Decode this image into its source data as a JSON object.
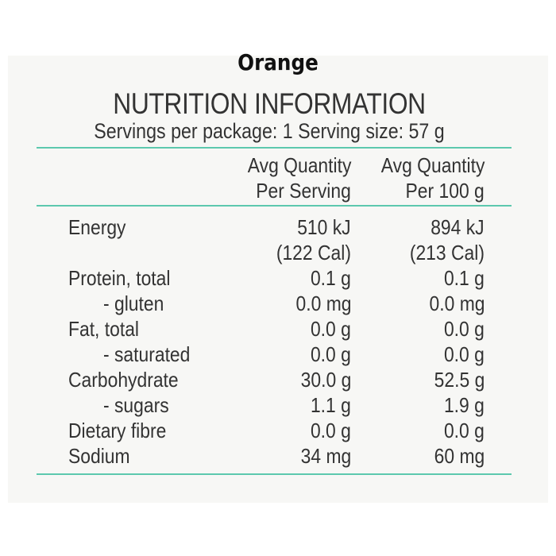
{
  "header": {
    "product": "Orange",
    "heading": "NUTRITION INFORMATION",
    "servings": "Servings per package: 1 Serving size: 57 g"
  },
  "columns": {
    "per_serving_line1": "Avg Quantity",
    "per_serving_line2": "Per Serving",
    "per_100g_line1": "Avg Quantity",
    "per_100g_line2": "Per 100 g"
  },
  "rows": [
    {
      "label": "Energy",
      "serving": "510 kJ",
      "per100": "894 kJ"
    },
    {
      "label": "",
      "serving": "(122 Cal)",
      "per100": "(213 Cal)"
    },
    {
      "label": "Protein, total",
      "serving": "0.1 g",
      "per100": "0.1 g"
    },
    {
      "label": "- gluten",
      "serving": "0.0 mg",
      "per100": "0.0 mg"
    },
    {
      "label": "Fat, total",
      "serving": "0.0 g",
      "per100": "0.0 g"
    },
    {
      "label": "- saturated",
      "serving": "0.0 g",
      "per100": "0.0 g"
    },
    {
      "label": "Carbohydrate",
      "serving": "30.0 g",
      "per100": "52.5 g"
    },
    {
      "label": "- sugars",
      "serving": "1.1 g",
      "per100": "1.9 g"
    },
    {
      "label": "Dietary fibre",
      "serving": "0.0 g",
      "per100": "0.0 g"
    },
    {
      "label": "Sodium",
      "serving": "34 mg",
      "per100": "60 mg"
    }
  ],
  "colors": {
    "rule": "#5cc8ae",
    "panel": "#f7f7f5",
    "text": "#333333"
  }
}
